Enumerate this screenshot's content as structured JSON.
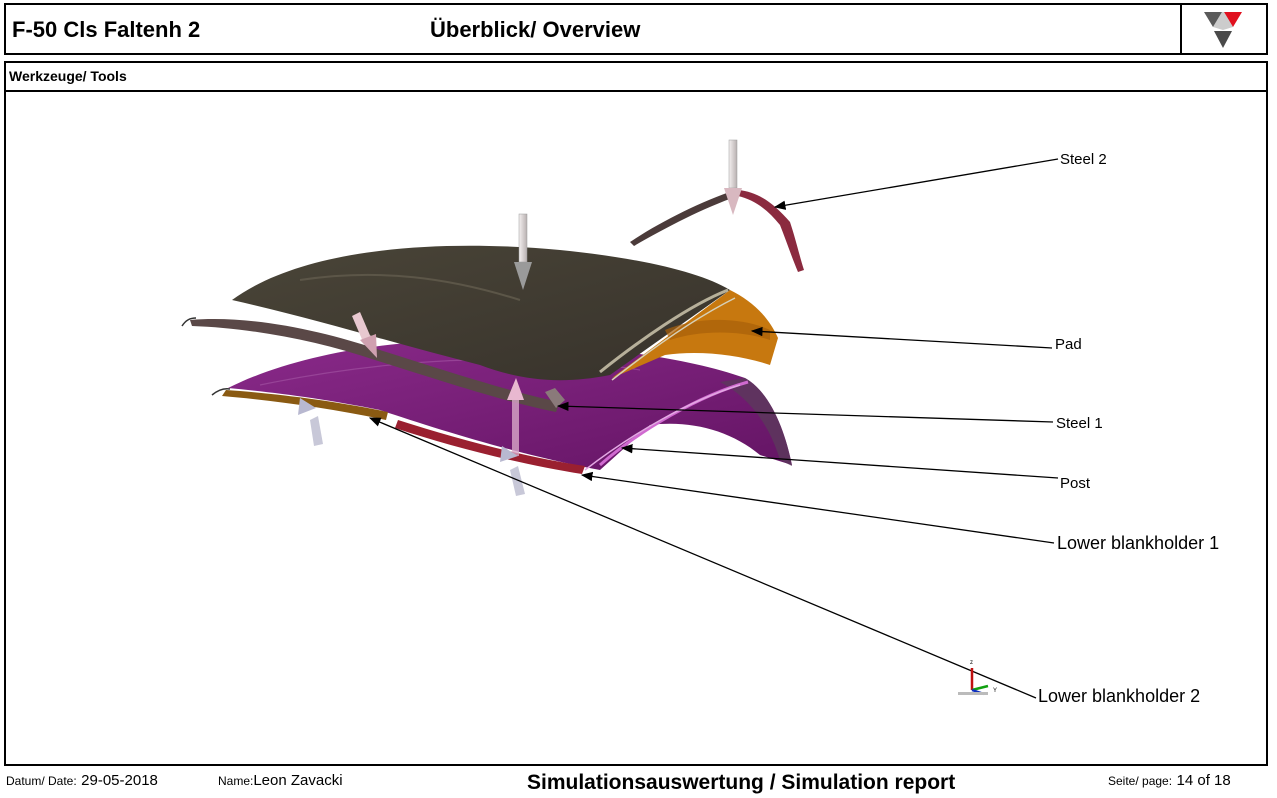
{
  "header": {
    "title": "F-50 Cls Faltenh 2",
    "center_title": "Überblick/ Overview"
  },
  "section": {
    "title": "Werkzeuge/ Tools"
  },
  "labels": {
    "steel2": "Steel 2",
    "pad": "Pad",
    "steel1": "Steel 1",
    "post": "Post",
    "lower_blankholder_1": "Lower blankholder 1",
    "lower_blankholder_2": "Lower blankholder 2"
  },
  "axis_triad": {
    "z": "z",
    "y": "Y"
  },
  "footer": {
    "date_label": "Datum/ Date:",
    "date_value": "29-05-2018",
    "name_label": "Name:",
    "name_value": "Leon Zavacki",
    "center": "Simulationsauswertung / Simulation report",
    "page_label": "Seite/ page:",
    "page_value": "14 of 18"
  },
  "colors": {
    "pad": "#3f3a31",
    "pad_side": "#c7780f",
    "post": "#7a1f7a",
    "post_highlight": "#c654c6",
    "steel": "#4b3b3a",
    "steel2_accent": "#8b2a3f",
    "logo_red": "#e0101e",
    "logo_grey": "#4a4a4a"
  }
}
